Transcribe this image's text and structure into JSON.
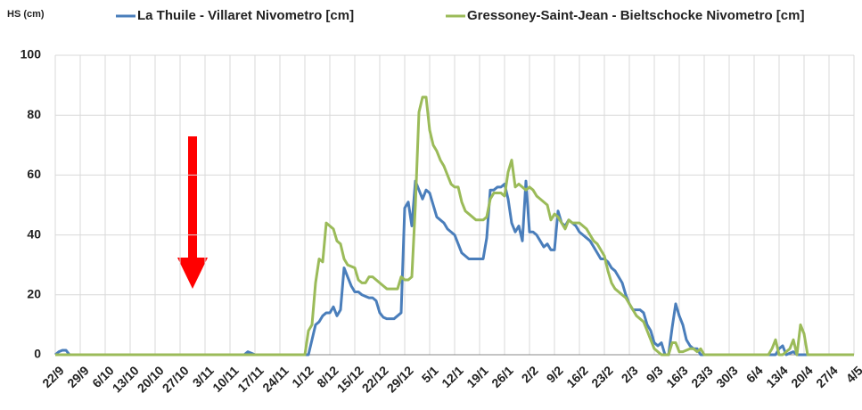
{
  "chart_data": {
    "type": "line",
    "ylabel": "HS (cm)",
    "categories": [
      "22/9",
      null,
      null,
      null,
      null,
      null,
      null,
      "29/9",
      null,
      null,
      null,
      null,
      null,
      null,
      "6/10",
      null,
      null,
      null,
      null,
      null,
      null,
      "13/10",
      null,
      null,
      null,
      null,
      null,
      null,
      "20/10",
      null,
      null,
      null,
      null,
      null,
      null,
      "27/10",
      null,
      null,
      null,
      null,
      null,
      null,
      "3/11",
      null,
      null,
      null,
      null,
      null,
      null,
      "10/11",
      null,
      null,
      null,
      null,
      null,
      null,
      "17/11",
      null,
      null,
      null,
      null,
      null,
      null,
      "24/11",
      null,
      null,
      null,
      null,
      null,
      null,
      "1/12",
      null,
      null,
      null,
      null,
      null,
      null,
      "8/12",
      null,
      null,
      null,
      null,
      null,
      null,
      "15/12",
      null,
      null,
      null,
      null,
      null,
      null,
      "22/12",
      null,
      null,
      null,
      null,
      null,
      null,
      "29/12",
      null,
      null,
      null,
      null,
      null,
      null,
      "5/1",
      null,
      null,
      null,
      null,
      null,
      null,
      "12/1",
      null,
      null,
      null,
      null,
      null,
      null,
      "19/1",
      null,
      null,
      null,
      null,
      null,
      null,
      "26/1",
      null,
      null,
      null,
      null,
      null,
      null,
      "2/2",
      null,
      null,
      null,
      null,
      null,
      null,
      "9/2",
      null,
      null,
      null,
      null,
      null,
      null,
      "16/2",
      null,
      null,
      null,
      null,
      null,
      null,
      "23/2",
      null,
      null,
      null,
      null,
      null,
      null,
      "2/3",
      null,
      null,
      null,
      null,
      null,
      null,
      "9/3",
      null,
      null,
      null,
      null,
      null,
      null,
      "16/3",
      null,
      null,
      null,
      null,
      null,
      null,
      "23/3",
      null,
      null,
      null,
      null,
      null,
      null,
      "30/3",
      null,
      null,
      null,
      null,
      null,
      null,
      "6/4",
      null,
      null,
      null,
      null,
      null,
      null,
      "13/4",
      null,
      null,
      null,
      null,
      null,
      null,
      "20/4",
      null,
      null,
      null,
      null,
      null,
      null,
      "27/4",
      null,
      null,
      null,
      null,
      null,
      null,
      "4/5"
    ],
    "series": [
      {
        "name": "La Thuile - Villaret Nivometro [cm]",
        "color": "#4a7ebb",
        "values": [
          0,
          1,
          1.5,
          1.5,
          0,
          0,
          0,
          0,
          0,
          0,
          0,
          0,
          0,
          0,
          0,
          0,
          0,
          0,
          0,
          0,
          0,
          0,
          0,
          0,
          0,
          0,
          0,
          0,
          0,
          0,
          0,
          0,
          0,
          0,
          0,
          0,
          0,
          0,
          0,
          0,
          0,
          0,
          0,
          0,
          0,
          0,
          0,
          0,
          0,
          0,
          0,
          0,
          0,
          0,
          1,
          0.5,
          0,
          0,
          0,
          0,
          0,
          0,
          0,
          0,
          0,
          0,
          0,
          0,
          0,
          0,
          0,
          0,
          5,
          10,
          11,
          13,
          14,
          14,
          16,
          13,
          15,
          29,
          26,
          23,
          21,
          21,
          20,
          19.5,
          19,
          19,
          18,
          14,
          12.5,
          12,
          12,
          12,
          13,
          14,
          49,
          51,
          43,
          58,
          55,
          52,
          55,
          54,
          50,
          46,
          45,
          44,
          42,
          41,
          40,
          37,
          34,
          33,
          32,
          32,
          32,
          32,
          32,
          39,
          55,
          55,
          56,
          56,
          57,
          52,
          44,
          41,
          43,
          38,
          58,
          41,
          41,
          40,
          38,
          36,
          37,
          35,
          35,
          48,
          44,
          43,
          45,
          44,
          43,
          41,
          40,
          39,
          38,
          36,
          34,
          32,
          32,
          31,
          29,
          28,
          26,
          24,
          20,
          17,
          15,
          15,
          15,
          14,
          10,
          8,
          4,
          3,
          4,
          0,
          0,
          9,
          17,
          13,
          10,
          5,
          3,
          2,
          2,
          0,
          0,
          0,
          0,
          0,
          0,
          0,
          0,
          0,
          0,
          0,
          0,
          0,
          0,
          0,
          0,
          0,
          0,
          0,
          0,
          0,
          0,
          2,
          3,
          0,
          0.5,
          1,
          0,
          0,
          0,
          0,
          0,
          0,
          0,
          0,
          0,
          0,
          0,
          0,
          0,
          0,
          0,
          0,
          0
        ]
      },
      {
        "name": "Gressoney-Saint-Jean - Bieltschocke Nivometro [cm]",
        "color": "#9bbb59",
        "values": [
          0,
          0,
          0,
          0,
          0,
          0,
          0,
          0,
          0,
          0,
          0,
          0,
          0,
          0,
          0,
          0,
          0,
          0,
          0,
          0,
          0,
          0,
          0,
          0,
          0,
          0,
          0,
          0,
          0,
          0,
          0,
          0,
          0,
          0,
          0,
          0,
          0,
          0,
          0,
          0,
          0,
          0,
          0,
          0,
          0,
          0,
          0,
          0,
          0,
          0,
          0,
          0,
          0,
          0,
          0,
          0,
          0,
          0,
          0,
          0,
          0,
          0,
          0,
          0,
          0,
          0,
          0,
          0,
          0,
          0,
          0,
          8,
          10,
          24,
          32,
          31,
          44,
          43,
          42,
          38,
          37,
          32,
          30,
          29.5,
          29,
          25,
          24,
          24,
          26,
          26,
          25,
          24,
          23,
          22,
          22,
          22,
          22,
          26,
          25,
          25,
          26,
          50,
          81,
          86,
          86,
          75,
          70,
          68,
          65,
          63,
          60,
          57,
          56,
          56,
          51,
          48,
          47,
          46,
          45,
          45,
          45,
          46,
          52,
          54,
          54,
          54,
          53,
          61,
          65,
          56,
          57,
          56,
          55,
          56,
          55,
          53,
          52,
          51,
          50,
          45,
          47,
          46,
          44,
          42,
          45,
          44,
          44,
          44,
          43,
          42,
          40,
          38,
          37,
          35,
          33,
          28,
          24,
          22,
          21,
          20,
          19,
          17,
          15,
          13,
          12,
          11,
          8,
          5,
          2,
          1,
          0,
          0,
          0,
          4,
          4,
          1,
          1,
          1.5,
          2,
          2,
          1,
          2,
          0,
          0,
          0,
          0,
          0,
          0,
          0,
          0,
          0,
          0,
          0,
          0,
          0,
          0,
          0,
          0,
          0,
          0,
          0,
          2,
          5,
          0,
          0,
          1,
          2,
          5,
          0,
          10,
          7,
          0,
          0,
          0,
          0,
          0,
          0,
          0,
          0,
          0,
          0,
          0,
          0,
          0,
          0
        ]
      }
    ],
    "ylim": [
      0,
      100
    ],
    "yticks": [
      0,
      20,
      40,
      60,
      80,
      100
    ],
    "grid": true
  }
}
